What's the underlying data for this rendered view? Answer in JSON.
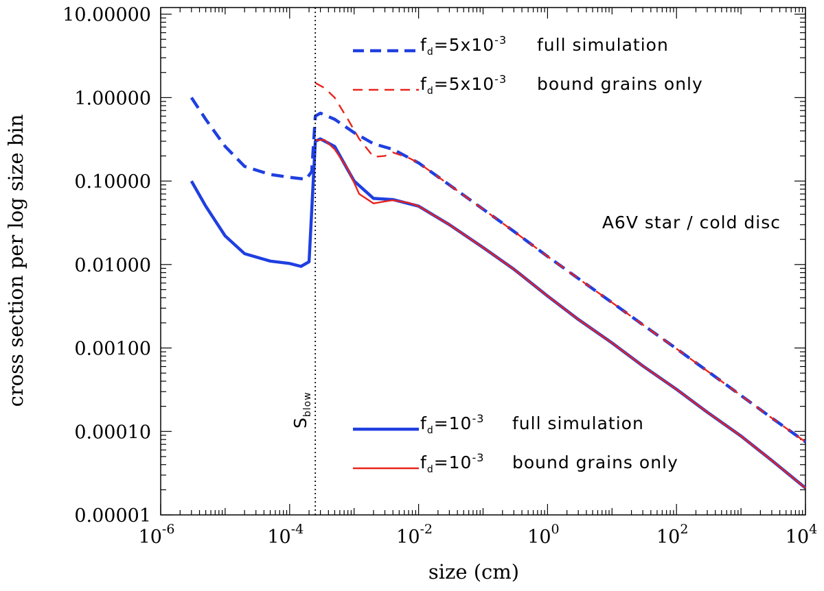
{
  "chart_data": {
    "type": "line",
    "xscale": "log",
    "yscale": "log",
    "xlim": [
      1e-06,
      10000.0
    ],
    "ylim": [
      1e-05,
      12
    ],
    "xlabel": "size (cm)",
    "ylabel": "cross section per log size bin",
    "x_ticks": [
      {
        "base": "10",
        "exp": "-6"
      },
      {
        "base": "10",
        "exp": "-4"
      },
      {
        "base": "10",
        "exp": "-2"
      },
      {
        "base": "10",
        "exp": "0"
      },
      {
        "base": "10",
        "exp": "2"
      },
      {
        "base": "10",
        "exp": "4"
      }
    ],
    "y_ticks": [
      "10.00000",
      "1.00000",
      "0.10000",
      "0.01000",
      "0.00100",
      "0.00010",
      "0.00001"
    ],
    "annotation": "A6V star / cold disc",
    "vline": {
      "x": 0.00025,
      "label": "S",
      "label_sub": "blow"
    },
    "series": [
      {
        "name": "full simulation",
        "fd_label": "f",
        "fd_sub": "d",
        "fd_value": "=5x10",
        "fd_exp": "-3",
        "color": "#1f3fe0",
        "style": "dashed",
        "width": "thick",
        "points": [
          [
            3e-06,
            1.0
          ],
          [
            5e-06,
            0.55
          ],
          [
            1e-05,
            0.26
          ],
          [
            2e-05,
            0.15
          ],
          [
            5e-05,
            0.12
          ],
          [
            0.00011,
            0.11
          ],
          [
            0.00018,
            0.105
          ],
          [
            0.00022,
            0.13
          ],
          [
            0.00025,
            0.6
          ],
          [
            0.0003,
            0.65
          ],
          [
            0.0005,
            0.55
          ],
          [
            0.001,
            0.38
          ],
          [
            0.002,
            0.28
          ],
          [
            0.004,
            0.24
          ],
          [
            0.01,
            0.165
          ],
          [
            0.03,
            0.09
          ],
          [
            0.1,
            0.046
          ],
          [
            0.3,
            0.025
          ],
          [
            1,
            0.0125
          ],
          [
            3,
            0.0068
          ],
          [
            10,
            0.0035
          ],
          [
            30,
            0.0019
          ],
          [
            100,
            0.00098
          ],
          [
            300,
            0.00053
          ],
          [
            1000,
            0.00027
          ],
          [
            3000,
            0.000145
          ],
          [
            10000.0,
            7.5e-05
          ]
        ]
      },
      {
        "name": "bound grains only",
        "fd_label": "f",
        "fd_sub": "d",
        "fd_value": "=5x10",
        "fd_exp": "-3",
        "color": "#e8231c",
        "style": "dashed",
        "width": "thin",
        "points": [
          [
            0.00025,
            1.5
          ],
          [
            0.00035,
            1.3
          ],
          [
            0.0005,
            1.0
          ],
          [
            0.0008,
            0.55
          ],
          [
            0.0012,
            0.32
          ],
          [
            0.002,
            0.195
          ],
          [
            0.003,
            0.2
          ],
          [
            0.004,
            0.22
          ],
          [
            0.007,
            0.19
          ],
          [
            0.01,
            0.165
          ],
          [
            0.03,
            0.09
          ],
          [
            0.1,
            0.046
          ],
          [
            0.3,
            0.025
          ],
          [
            1,
            0.0125
          ],
          [
            3,
            0.0068
          ],
          [
            10,
            0.0035
          ],
          [
            30,
            0.0019
          ],
          [
            100,
            0.00098
          ],
          [
            300,
            0.00053
          ],
          [
            1000,
            0.00027
          ],
          [
            3000,
            0.000145
          ],
          [
            10000.0,
            7.5e-05
          ]
        ]
      },
      {
        "name": "full simulation",
        "fd_label": "f",
        "fd_sub": "d",
        "fd_value": "=10",
        "fd_exp": "-3",
        "color": "#1f3fe0",
        "style": "solid",
        "width": "thick",
        "points": [
          [
            3e-06,
            0.1
          ],
          [
            5e-06,
            0.05
          ],
          [
            1e-05,
            0.022
          ],
          [
            2e-05,
            0.0135
          ],
          [
            5e-05,
            0.011
          ],
          [
            0.0001,
            0.0103
          ],
          [
            0.00015,
            0.0095
          ],
          [
            0.0002,
            0.0108
          ],
          [
            0.00025,
            0.3
          ],
          [
            0.0003,
            0.32
          ],
          [
            0.0005,
            0.26
          ],
          [
            0.001,
            0.1
          ],
          [
            0.002,
            0.062
          ],
          [
            0.004,
            0.06
          ],
          [
            0.01,
            0.05
          ],
          [
            0.03,
            0.03
          ],
          [
            0.1,
            0.016
          ],
          [
            0.3,
            0.0088
          ],
          [
            1,
            0.0042
          ],
          [
            3,
            0.0022
          ],
          [
            10,
            0.00115
          ],
          [
            30,
            0.00061
          ],
          [
            100,
            0.00032
          ],
          [
            300,
            0.00017
          ],
          [
            1000,
            8.8e-05
          ],
          [
            3000,
            4.5e-05
          ],
          [
            10000.0,
            2.1e-05
          ]
        ]
      },
      {
        "name": "bound grains only",
        "fd_label": "f",
        "fd_sub": "d",
        "fd_value": "=10",
        "fd_exp": "-3",
        "color": "#e8231c",
        "style": "solid",
        "width": "thin",
        "points": [
          [
            0.00025,
            0.31
          ],
          [
            0.00035,
            0.31
          ],
          [
            0.0005,
            0.24
          ],
          [
            0.0008,
            0.14
          ],
          [
            0.0012,
            0.07
          ],
          [
            0.002,
            0.054
          ],
          [
            0.003,
            0.057
          ],
          [
            0.004,
            0.059
          ],
          [
            0.007,
            0.055
          ],
          [
            0.01,
            0.05
          ],
          [
            0.03,
            0.03
          ],
          [
            0.1,
            0.016
          ],
          [
            0.3,
            0.0088
          ],
          [
            1,
            0.0042
          ],
          [
            3,
            0.0022
          ],
          [
            10,
            0.00115
          ],
          [
            30,
            0.00061
          ],
          [
            100,
            0.00032
          ],
          [
            300,
            0.00017
          ],
          [
            1000,
            8.8e-05
          ],
          [
            3000,
            4.5e-05
          ],
          [
            10000.0,
            2.1e-05
          ]
        ]
      }
    ],
    "legend": [
      {
        "series_index": 0,
        "text": "full simulation"
      },
      {
        "series_index": 1,
        "text": "bound grains only"
      },
      {
        "series_index": 2,
        "text": "full simulation"
      },
      {
        "series_index": 3,
        "text": "bound grains only"
      }
    ]
  }
}
